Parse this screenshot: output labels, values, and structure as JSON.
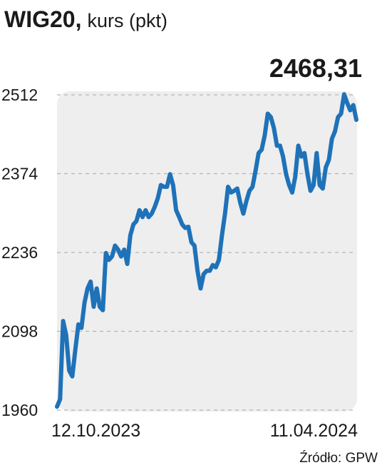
{
  "chart_data": {
    "type": "line",
    "title": "WIG20,",
    "subtitle": "kurs (pkt)",
    "annotation": "2468,31",
    "source": "Źródło: GPW",
    "categories": [
      "12.10.2023",
      null,
      null,
      null,
      null,
      null,
      null,
      null,
      null,
      null,
      null,
      null,
      null,
      null,
      null,
      null,
      null,
      null,
      null,
      null,
      null,
      null,
      null,
      null,
      null,
      null,
      null,
      null,
      null,
      null,
      null,
      null,
      null,
      null,
      null,
      null,
      null,
      null,
      null,
      null,
      null,
      null,
      null,
      null,
      null,
      null,
      null,
      null,
      null,
      null,
      null,
      null,
      null,
      null,
      null,
      null,
      null,
      null,
      null,
      null,
      null,
      null,
      null,
      null,
      null,
      null,
      null,
      null,
      null,
      null,
      null,
      null,
      null,
      null,
      null,
      null,
      null,
      null,
      null,
      null,
      null,
      null,
      null,
      null,
      null,
      null,
      null,
      null,
      null,
      null,
      null,
      null,
      null,
      null,
      null,
      null,
      null,
      null,
      "11.04.2024"
    ],
    "series": [
      {
        "color": "#1f72b8",
        "values": [
          1966,
          1979,
          2116,
          2091,
          2029,
          2019,
          2066,
          2110,
          2104,
          2148,
          2173,
          2185,
          2141,
          2173,
          2141,
          2135,
          2235,
          2223,
          2229,
          2248,
          2241,
          2229,
          2241,
          2216,
          2266,
          2285,
          2291,
          2310,
          2298,
          2310,
          2298,
          2304,
          2316,
          2331,
          2354,
          2351,
          2351,
          2373,
          2354,
          2310,
          2298,
          2285,
          2279,
          2281,
          2254,
          2248,
          2204,
          2173,
          2198,
          2204,
          2204,
          2214,
          2210,
          2223,
          2266,
          2304,
          2351,
          2341,
          2344,
          2348,
          2323,
          2304,
          2326,
          2344,
          2351,
          2379,
          2410,
          2416,
          2441,
          2479,
          2473,
          2454,
          2423,
          2423,
          2404,
          2373,
          2354,
          2341,
          2369,
          2423,
          2404,
          2410,
          2373,
          2344,
          2354,
          2410,
          2354,
          2348,
          2385,
          2398,
          2435,
          2448,
          2473,
          2479,
          2513,
          2498,
          2485,
          2494,
          2468.31
        ]
      }
    ],
    "ylim": [
      1960,
      2512
    ],
    "yticks": [
      1960,
      2098,
      2236,
      2374,
      2512
    ],
    "grid": true,
    "annotation_color": "#1e7bc4"
  }
}
